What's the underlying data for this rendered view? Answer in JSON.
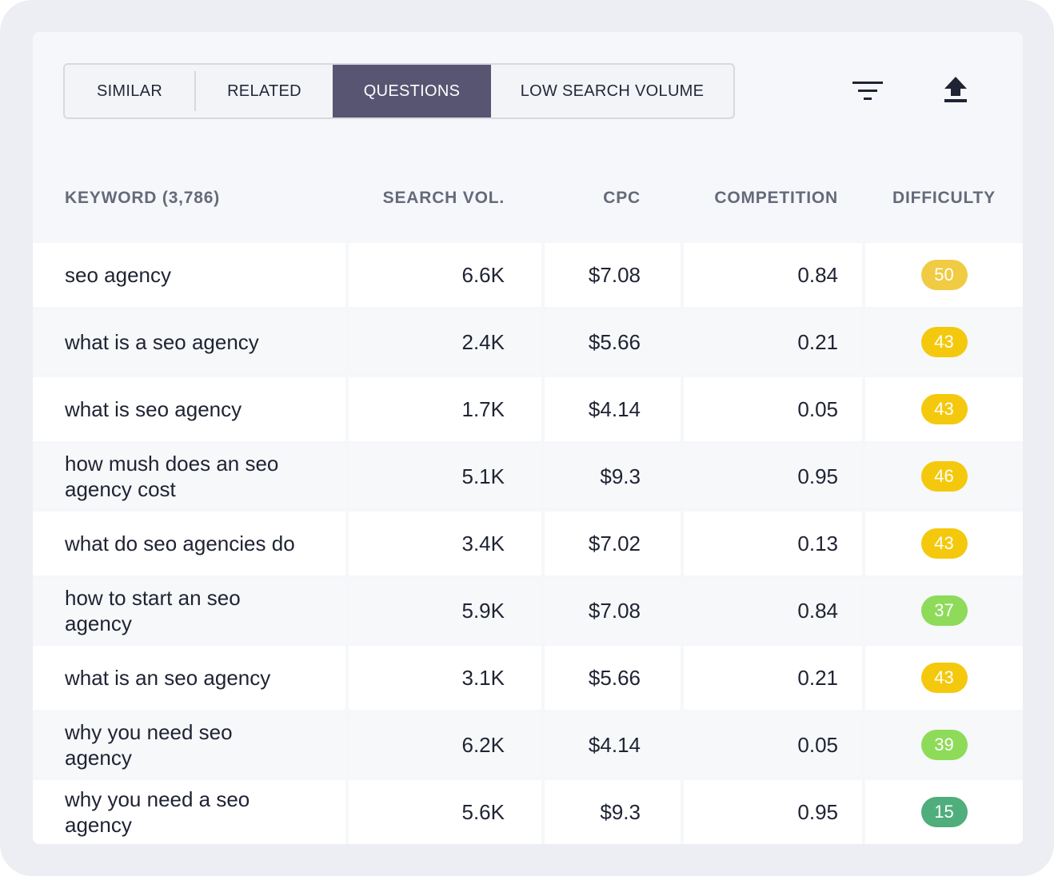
{
  "tabs": [
    {
      "label": "SIMILAR",
      "active": false
    },
    {
      "label": "RELATED",
      "active": false
    },
    {
      "label": "QUESTIONS",
      "active": true
    },
    {
      "label": "LOW SEARCH VOLUME",
      "active": false
    }
  ],
  "toolbar": {
    "filter_icon": "filter-icon",
    "export_icon": "export-upload-icon"
  },
  "table": {
    "headers": {
      "keyword": "KEYWORD (3,786)",
      "search_vol": "SEARCH VOL.",
      "cpc": "CPC",
      "competition": "COMPETITION",
      "difficulty": "DIFFICULTY"
    },
    "rows": [
      {
        "keyword": "seo agency",
        "search_vol": "6.6K",
        "cpc": "$7.08",
        "competition": "0.84",
        "difficulty": "50",
        "color": "#f0cb43"
      },
      {
        "keyword": "what is a seo agency",
        "search_vol": "2.4K",
        "cpc": "$5.66",
        "competition": "0.21",
        "difficulty": "43",
        "color": "#f4c90d"
      },
      {
        "keyword": "what is seo agency",
        "search_vol": "1.7K",
        "cpc": "$4.14",
        "competition": "0.05",
        "difficulty": "43",
        "color": "#f4c90d"
      },
      {
        "keyword": "how mush does an seo agency cost",
        "search_vol": "5.1K",
        "cpc": "$9.3",
        "competition": "0.95",
        "difficulty": "46",
        "color": "#f4c90d"
      },
      {
        "keyword": "what do seo agencies do",
        "search_vol": "3.4K",
        "cpc": "$7.02",
        "competition": "0.13",
        "difficulty": "43",
        "color": "#f4c90d"
      },
      {
        "keyword": "how to start an seo agency",
        "search_vol": "5.9K",
        "cpc": "$7.08",
        "competition": "0.84",
        "difficulty": "37",
        "color": "#8edb5a"
      },
      {
        "keyword": "what is an seo agency",
        "search_vol": "3.1K",
        "cpc": "$5.66",
        "competition": "0.21",
        "difficulty": "43",
        "color": "#f4c90d"
      },
      {
        "keyword": "why you need seo agency",
        "search_vol": "6.2K",
        "cpc": "$4.14",
        "competition": "0.05",
        "difficulty": "39",
        "color": "#8edb5a"
      },
      {
        "keyword": "why you need a seo agency",
        "search_vol": "5.6K",
        "cpc": "$9.3",
        "competition": "0.95",
        "difficulty": "15",
        "color": "#4fae7c"
      }
    ]
  }
}
